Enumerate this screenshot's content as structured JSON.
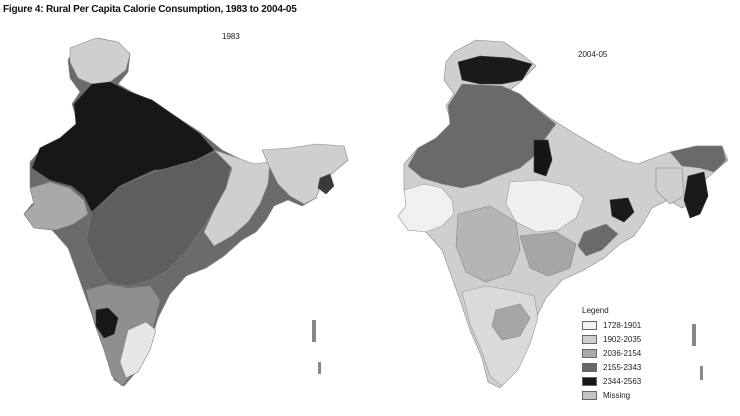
{
  "figure": {
    "title": "Figure 4: Rural Per Capita Calorie Consumption, 1983 to 2004-05"
  },
  "maps": {
    "left": {
      "label": "1983"
    },
    "right": {
      "label": "2004-05"
    }
  },
  "legend": {
    "title": "Legend",
    "items": [
      {
        "label": "1728-1901",
        "color": "#f2f2f2"
      },
      {
        "label": "1902-2035",
        "color": "#cfcfcf"
      },
      {
        "label": "2036-2154",
        "color": "#a9a9a9"
      },
      {
        "label": "2155-2343",
        "color": "#666666"
      },
      {
        "label": "2344-2563",
        "color": "#161616"
      },
      {
        "label": "Missing",
        "color": "#c4c4c4"
      }
    ]
  }
}
